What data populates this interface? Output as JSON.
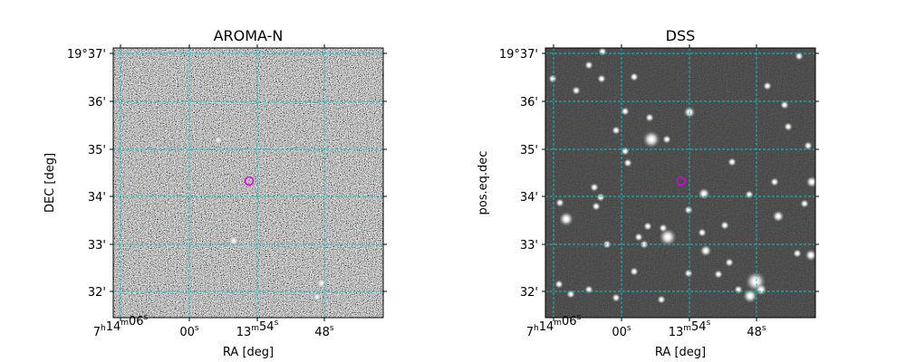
{
  "panels": [
    {
      "title": "AROMA-N",
      "xlabel": "RA [deg]",
      "ylabel": "DEC [deg]",
      "style": "noise",
      "dec_ticks": [
        "19°37'",
        "36'",
        "35'",
        "34'",
        "33'",
        "32'"
      ],
      "ra_ticks": [
        {
          "hms": "7",
          "hsup": "h",
          "m": "14",
          "msup": "m",
          "s": "06",
          "ssup": "s"
        },
        {
          "s": "00",
          "ssup": "s"
        },
        {
          "m": "13",
          "msup": "m",
          "s": "54",
          "ssup": "s"
        },
        {
          "s": "48",
          "ssup": "s"
        }
      ]
    },
    {
      "title": "DSS",
      "xlabel": "RA [deg]",
      "ylabel": "pos.eq.dec",
      "style": "stars",
      "dec_ticks": [
        "19°37'",
        "36'",
        "35'",
        "34'",
        "33'",
        "32'"
      ],
      "ra_ticks": [
        {
          "hms": "7",
          "hsup": "h",
          "m": "14",
          "msup": "m",
          "s": "06",
          "ssup": "s"
        },
        {
          "s": "00",
          "ssup": "s"
        },
        {
          "m": "13",
          "msup": "m",
          "s": "54",
          "ssup": "s"
        },
        {
          "s": "48",
          "ssup": "s"
        }
      ]
    }
  ],
  "colors": {
    "grid": "#00c8c8",
    "marker": "#e000e0",
    "frame": "#000000"
  },
  "marker": {
    "shape": "circle",
    "color_name": "magenta"
  }
}
